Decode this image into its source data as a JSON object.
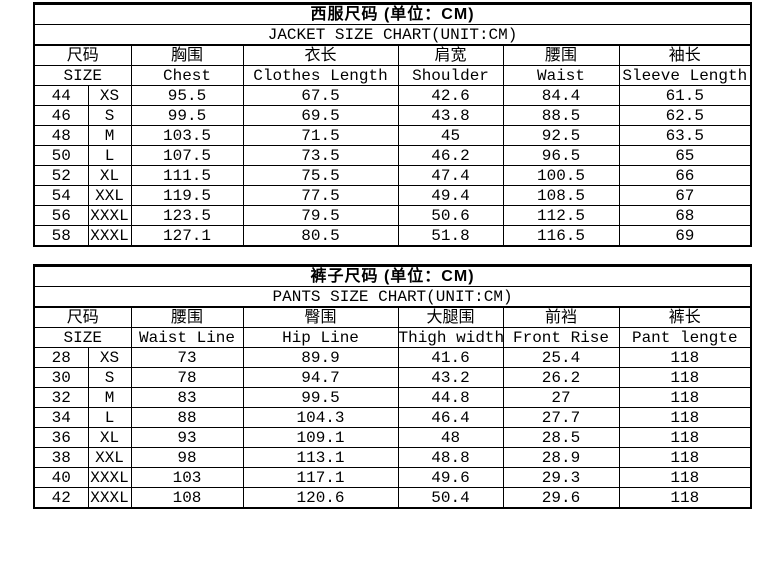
{
  "page": {
    "background_color": "#ffffff",
    "border_color": "#000000",
    "text_color": "#000000"
  },
  "tables": [
    {
      "id": "jacket-size-chart",
      "title": "西服尺码 (单位：CM)",
      "subtitle": "JACKET SIZE CHART(UNIT:CM)",
      "headers_cn": [
        "尺码",
        "胸围",
        "衣长",
        "肩宽",
        "腰围",
        "袖长"
      ],
      "headers_en": [
        "SIZE",
        "Chest",
        "Clothes Length",
        "Shoulder",
        "Waist",
        "Sleeve Length"
      ],
      "rows": [
        [
          "44",
          "XS",
          "95.5",
          "67.5",
          "42.6",
          "84.4",
          "61.5"
        ],
        [
          "46",
          "S",
          "99.5",
          "69.5",
          "43.8",
          "88.5",
          "62.5"
        ],
        [
          "48",
          "M",
          "103.5",
          "71.5",
          "45",
          "92.5",
          "63.5"
        ],
        [
          "50",
          "L",
          "107.5",
          "73.5",
          "46.2",
          "96.5",
          "65"
        ],
        [
          "52",
          "XL",
          "111.5",
          "75.5",
          "47.4",
          "100.5",
          "66"
        ],
        [
          "54",
          "XXL",
          "119.5",
          "77.5",
          "49.4",
          "108.5",
          "67"
        ],
        [
          "56",
          "XXXL",
          "123.5",
          "79.5",
          "50.6",
          "112.5",
          "68"
        ],
        [
          "58",
          "XXXL",
          "127.1",
          "80.5",
          "51.8",
          "116.5",
          "69"
        ]
      ]
    },
    {
      "id": "pants-size-chart",
      "title": "裤子尺码 (单位：CM)",
      "subtitle": "PANTS SIZE CHART(UNIT:CM)",
      "headers_cn": [
        "尺码",
        "腰围",
        "臀围",
        "大腿围",
        "前裆",
        "裤长"
      ],
      "headers_en": [
        "SIZE",
        "Waist Line",
        "Hip Line",
        "Thigh width",
        "Front Rise",
        "Pant lengte"
      ],
      "rows": [
        [
          "28",
          "XS",
          "73",
          "89.9",
          "41.6",
          "25.4",
          "118"
        ],
        [
          "30",
          "S",
          "78",
          "94.7",
          "43.2",
          "26.2",
          "118"
        ],
        [
          "32",
          "M",
          "83",
          "99.5",
          "44.8",
          "27",
          "118"
        ],
        [
          "34",
          "L",
          "88",
          "104.3",
          "46.4",
          "27.7",
          "118"
        ],
        [
          "36",
          "XL",
          "93",
          "109.1",
          "48",
          "28.5",
          "118"
        ],
        [
          "38",
          "XXL",
          "98",
          "113.1",
          "48.8",
          "28.9",
          "118"
        ],
        [
          "40",
          "XXXL",
          "103",
          "117.1",
          "49.6",
          "29.3",
          "118"
        ],
        [
          "42",
          "XXXL",
          "108",
          "120.6",
          "50.4",
          "29.6",
          "118"
        ]
      ]
    }
  ]
}
